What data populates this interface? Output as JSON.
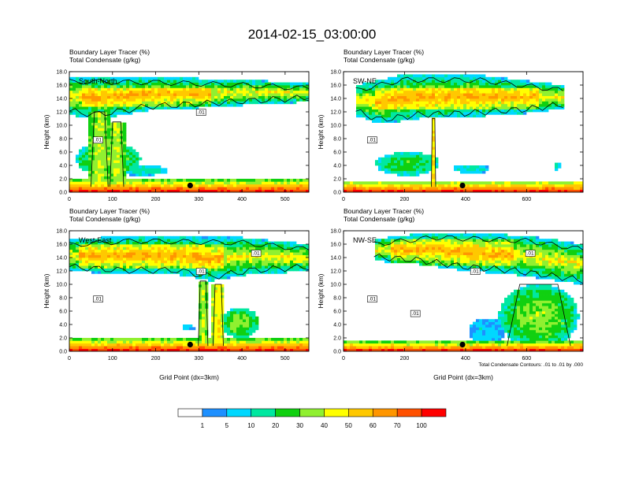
{
  "figure_title": "2014-02-15_03:00:00",
  "chart_data": [
    {
      "type": "heatmap",
      "title": "Boundary Layer Tracer   (%)",
      "subtitle": "Total Condensate   (g/kg)",
      "region_label": "South-North",
      "xlabel": "",
      "ylabel": "Height (km)",
      "xlim": [
        0,
        555
      ],
      "ylim": [
        0,
        18
      ],
      "xticks": [
        "0",
        "100",
        "200",
        "300",
        "400",
        "500"
      ],
      "yticks": [
        "0.0",
        "2.0",
        "4.0",
        "6.0",
        "8.0",
        "10.0",
        "12.0",
        "14.0",
        "16.0",
        "18.0"
      ],
      "contour_labels": [
        ".01",
        ".01"
      ],
      "marker": {
        "x": 280,
        "y": 1.0
      },
      "note": ""
    },
    {
      "type": "heatmap",
      "title": "Boundary Layer Tracer   (%)",
      "subtitle": "Total Condensate   (g/kg)",
      "region_label": "SW-NE",
      "xlabel": "",
      "ylabel": "Height (km)",
      "xlim": [
        0,
        785
      ],
      "ylim": [
        0,
        18
      ],
      "xticks": [
        "0",
        "200",
        "400",
        "600"
      ],
      "yticks": [
        "0.0",
        "2.0",
        "4.0",
        "6.0",
        "8.0",
        "10.0",
        "12.0",
        "14.0",
        "16.0",
        "18.0"
      ],
      "contour_labels": [
        ".01"
      ],
      "marker": {
        "x": 390,
        "y": 1.0
      },
      "note": ""
    },
    {
      "type": "heatmap",
      "title": "Boundary Layer Tracer   (%)",
      "subtitle": "Total Condensate   (g/kg)",
      "region_label": "West-East",
      "xlabel": "Grid Point (dx=3km)",
      "ylabel": "Height (km)",
      "xlim": [
        0,
        555
      ],
      "ylim": [
        0,
        18
      ],
      "xticks": [
        "0",
        "100",
        "200",
        "300",
        "400",
        "500"
      ],
      "yticks": [
        "0.0",
        "2.0",
        "4.0",
        "6.0",
        "8.0",
        "10.0",
        "12.0",
        "14.0",
        "16.0",
        "18.0"
      ],
      "contour_labels": [
        ".01",
        ".01",
        ".01"
      ],
      "marker": {
        "x": 280,
        "y": 1.0
      },
      "note": ""
    },
    {
      "type": "heatmap",
      "title": "Boundary Layer Tracer   (%)",
      "subtitle": "Total Condensate   (g/kg)",
      "region_label": "NW-SE",
      "xlabel": "Grid Point (dx=3km)",
      "ylabel": "Height (km)",
      "xlim": [
        0,
        785
      ],
      "ylim": [
        0,
        18
      ],
      "xticks": [
        "0",
        "200",
        "400",
        "600"
      ],
      "yticks": [
        "0.0",
        "2.0",
        "4.0",
        "6.0",
        "8.0",
        "10.0",
        "12.0",
        "14.0",
        "16.0",
        "18.0"
      ],
      "contour_labels": [
        ".01",
        ".01",
        ".01",
        ".01"
      ],
      "marker": {
        "x": 390,
        "y": 1.0
      },
      "note": "Total Condensate Contours: .01 to .01 by .000"
    }
  ],
  "colorbar": {
    "labels": [
      "1",
      "5",
      "10",
      "20",
      "30",
      "40",
      "50",
      "60",
      "70",
      "100"
    ],
    "colors": [
      "#ffffff",
      "#1e90ff",
      "#00d8ff",
      "#00e8a0",
      "#10d010",
      "#90f030",
      "#ffff00",
      "#ffc800",
      "#ff9600",
      "#ff5000",
      "#ff0000"
    ]
  }
}
